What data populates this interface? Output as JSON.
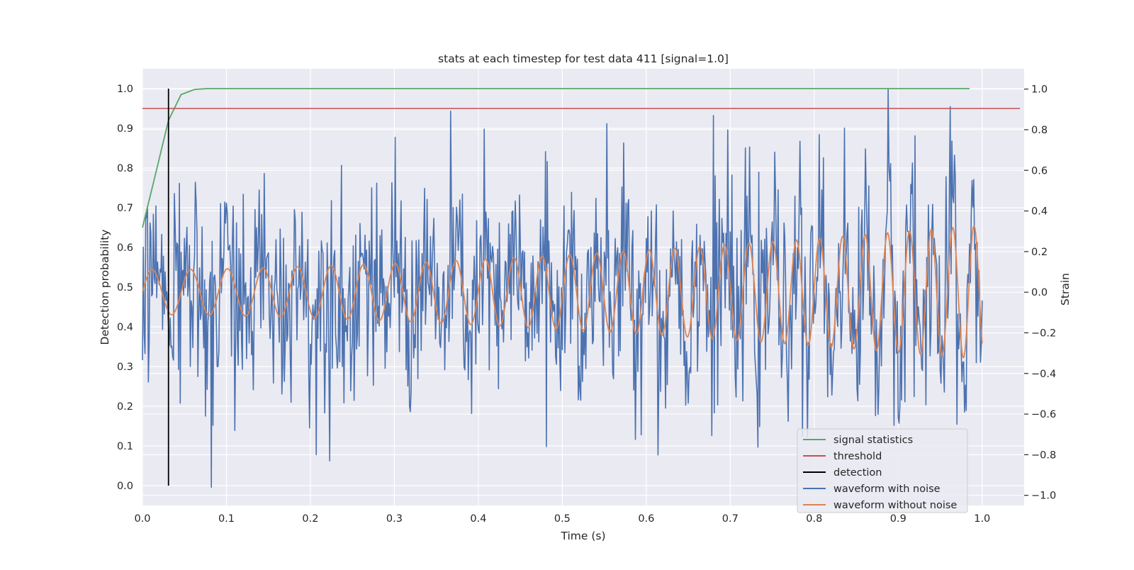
{
  "chart_data": {
    "type": "line",
    "title": "stats at each timestep for test data 411 [signal=1.0]",
    "xlabel": "Time (s)",
    "ylabel_left": "Detection probability",
    "ylabel_right": "Strain",
    "xlim": [
      0.0,
      1.05
    ],
    "ylim_left": [
      -0.05,
      1.05
    ],
    "ylim_right": [
      -1.05,
      1.1
    ],
    "x_ticks": [
      "0.0",
      "0.1",
      "0.2",
      "0.3",
      "0.4",
      "0.5",
      "0.6",
      "0.7",
      "0.8",
      "0.9",
      "1.0"
    ],
    "y_ticks_left": [
      "0.0",
      "0.1",
      "0.2",
      "0.3",
      "0.4",
      "0.5",
      "0.6",
      "0.7",
      "0.8",
      "0.9",
      "1.0"
    ],
    "y_ticks_right": [
      "−1.0",
      "−0.8",
      "−0.6",
      "−0.4",
      "−0.2",
      "0.0",
      "0.2",
      "0.4",
      "0.6",
      "0.8",
      "1.0"
    ],
    "grid": true,
    "legend_position": "bottom-right",
    "colors": {
      "signal_statistics": "#55a868",
      "threshold": "#c44e52",
      "detection": "#000000",
      "waveform_with_noise": "#4c72b0",
      "waveform_without_noise": "#dd8452",
      "plot_background": "#eaeaf2",
      "grid": "#ffffff"
    },
    "legend": [
      {
        "label": "signal statistics",
        "key": "signal_statistics"
      },
      {
        "label": "threshold",
        "key": "threshold"
      },
      {
        "label": "detection",
        "key": "detection"
      },
      {
        "label": "waveform with noise",
        "key": "waveform_with_noise"
      },
      {
        "label": "waveform without noise",
        "key": "waveform_without_noise"
      }
    ],
    "series": [
      {
        "name": "signal statistics",
        "axis": "left",
        "x": [
          0.0,
          0.015,
          0.031,
          0.046,
          0.062,
          0.077,
          0.1,
          0.2,
          0.4,
          0.6,
          0.8,
          0.985
        ],
        "values": [
          0.65,
          0.78,
          0.92,
          0.985,
          0.998,
          1.0,
          1.0,
          1.0,
          1.0,
          1.0,
          1.0,
          1.0
        ]
      },
      {
        "name": "threshold",
        "axis": "left",
        "x": [
          0.0,
          1.045
        ],
        "values": [
          0.95,
          0.95
        ]
      },
      {
        "name": "detection",
        "axis": "left",
        "x": [
          0.031,
          0.031
        ],
        "values": [
          0.0,
          1.0
        ]
      },
      {
        "name": "waveform with noise",
        "axis": "right",
        "description": "noisy strain samples, roughly 1000 points between x=0 and x=1; spikes reach 1.0 near t=0.888 and about -0.96 near t=0.082",
        "x_range": [
          0.0,
          1.0
        ],
        "approx_std": 0.25,
        "notable_points": [
          {
            "x": 0.082,
            "y": -0.96
          },
          {
            "x": 0.223,
            "y": -0.83
          },
          {
            "x": 0.481,
            "y": -0.76
          },
          {
            "x": 0.553,
            "y": 0.83
          },
          {
            "x": 0.68,
            "y": 0.87
          },
          {
            "x": 0.888,
            "y": 1.0
          },
          {
            "x": 0.92,
            "y": 0.77
          },
          {
            "x": 0.97,
            "y": -0.65
          }
        ]
      },
      {
        "name": "waveform without noise",
        "axis": "right",
        "description": "clean chirp, amplitude grows from about 0.11 at t=0 to about 0.33 at t=1; period shrinks from about 0.047 s to about 0.025 s",
        "x_range": [
          0.0,
          1.0
        ],
        "amplitude_start": 0.11,
        "amplitude_end": 0.33,
        "period_start": 0.047,
        "period_end": 0.025
      }
    ]
  }
}
